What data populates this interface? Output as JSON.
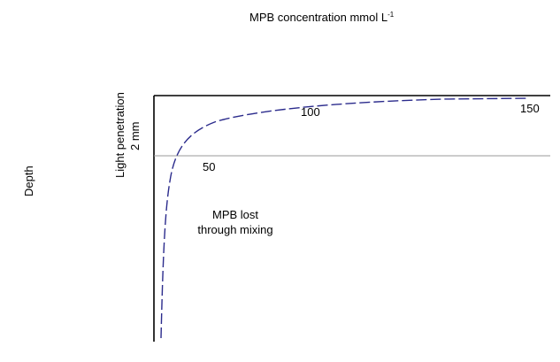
{
  "title": {
    "text": "MPB concentration mmol L",
    "superscript": "-1"
  },
  "depth_label": "Depth",
  "light_label": {
    "line1": "Light penetration",
    "line2": "2 mm"
  },
  "tick_labels": [
    "50",
    "100",
    "150"
  ],
  "annotation": {
    "line1": "MPB lost",
    "line2": "through mixing"
  },
  "colors": {
    "axis": "#000000",
    "light_line": "#999999",
    "curve": "#2b2b8c"
  }
}
